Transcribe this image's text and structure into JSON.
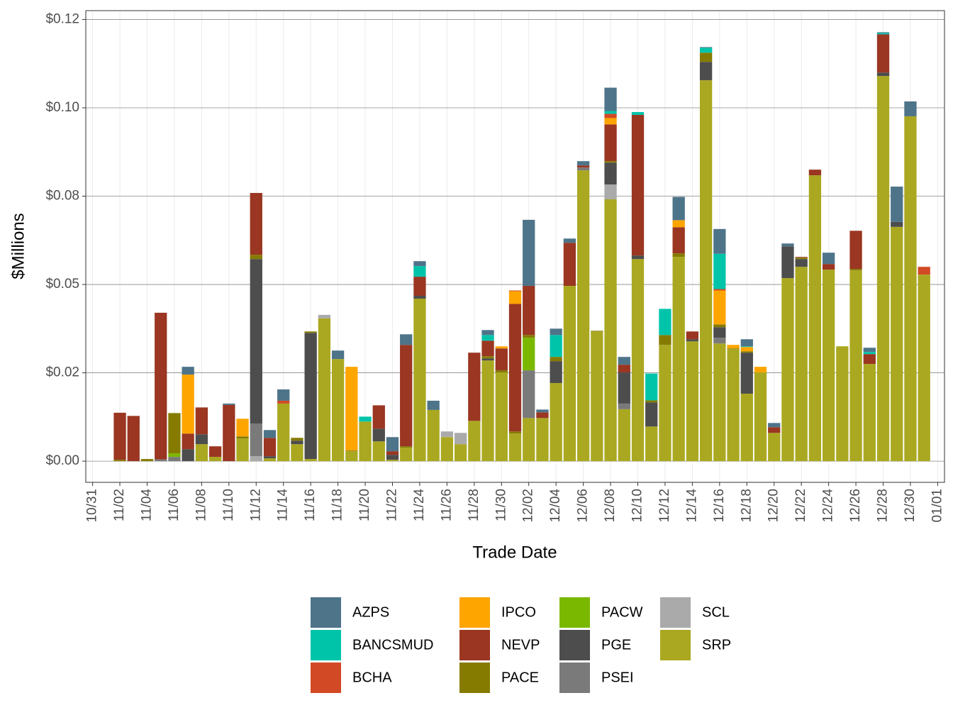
{
  "chart_data": {
    "type": "bar",
    "stacked": true,
    "x_label": "Trade Date",
    "y_label": "$Millions",
    "categories": [
      "11/02",
      "11/03",
      "11/04",
      "11/05",
      "11/06",
      "11/07",
      "11/08",
      "11/09",
      "11/10",
      "11/11",
      "11/12",
      "11/13",
      "11/14",
      "11/15",
      "11/16",
      "11/17",
      "11/18",
      "11/19",
      "11/20",
      "11/21",
      "11/22",
      "11/23",
      "11/24",
      "11/25",
      "11/26",
      "11/27",
      "11/28",
      "11/29",
      "11/30",
      "12/01",
      "12/02",
      "12/03",
      "12/04",
      "12/05",
      "12/06",
      "12/07",
      "12/08",
      "12/09",
      "12/10",
      "12/11",
      "12/12",
      "12/13",
      "12/14",
      "12/15",
      "12/16",
      "12/17",
      "12/18",
      "12/19",
      "12/20",
      "12/21",
      "12/22",
      "12/23",
      "12/24",
      "12/25",
      "12/26",
      "12/27",
      "12/28",
      "12/29",
      "12/30",
      "12/31"
    ],
    "series": [
      {
        "name": "AZPS",
        "color": "#4e7489",
        "values": [
          0,
          0,
          0,
          0,
          0,
          0.0022,
          0,
          0,
          0.0004,
          0,
          0,
          0.0022,
          0.0032,
          0,
          0,
          0,
          0.0024,
          0,
          0,
          0,
          0.004,
          0.003,
          0.0014,
          0.0026,
          0,
          0,
          0,
          0.0014,
          0,
          0,
          0.0187,
          0.0008,
          0.0018,
          0.0012,
          0.0012,
          0,
          0.0066,
          0.0022,
          0,
          0,
          0,
          0.0066,
          0,
          0.0002,
          0.007,
          0,
          0.002,
          0,
          0.0012,
          0.0008,
          0,
          0,
          0.0032,
          0,
          0,
          0.0012,
          0.0002,
          0.01,
          0.0042,
          0
        ]
      },
      {
        "name": "BANCSMUD",
        "color": "#00c4aa",
        "values": [
          0,
          0,
          0,
          0,
          0,
          0,
          0,
          0,
          0,
          0,
          0,
          0,
          0,
          0,
          0,
          0,
          0,
          0,
          0.0014,
          0,
          0,
          0,
          0.003,
          0,
          0,
          0,
          0,
          0.0016,
          0,
          0,
          0,
          0,
          0.0062,
          0,
          0,
          0,
          0.0008,
          0,
          0.0008,
          0.0076,
          0.0074,
          0,
          0,
          0.0014,
          0.01,
          0,
          0.0002,
          0,
          0,
          0,
          0,
          0,
          0,
          0,
          0,
          0.0006,
          0.0004,
          0,
          0,
          0
        ]
      },
      {
        "name": "BCHA",
        "color": "#d24a25",
        "values": [
          0,
          0,
          0,
          0,
          0,
          0,
          0,
          0,
          0,
          0,
          0,
          0,
          0.0008,
          0,
          0,
          0,
          0,
          0,
          0,
          0,
          0,
          0,
          0,
          0,
          0,
          0,
          0,
          0,
          0,
          0.0002,
          0,
          0,
          0,
          0,
          0,
          0,
          0.0012,
          0,
          0,
          0,
          0,
          0,
          0,
          0,
          0.0004,
          0,
          0,
          0,
          0,
          0,
          0,
          0,
          0,
          0,
          0,
          0,
          0,
          0,
          0,
          0.0022
        ]
      },
      {
        "name": "IPCO",
        "color": "#ffa500",
        "values": [
          0,
          0,
          0,
          0,
          0,
          0.0167,
          0,
          0,
          0,
          0.005,
          0,
          0,
          0,
          0,
          0,
          0,
          0,
          0.0237,
          0,
          0,
          0,
          0,
          0,
          0,
          0,
          0,
          0,
          0,
          0.0006,
          0.0036,
          0,
          0,
          0,
          0,
          0,
          0,
          0.0018,
          0,
          0,
          0,
          0,
          0.002,
          0,
          0,
          0.0096,
          0.001,
          0.0012,
          0.0016,
          0,
          0,
          0,
          0,
          0,
          0,
          0,
          0,
          0,
          0,
          0,
          0
        ]
      },
      {
        "name": "NEVP",
        "color": "#9a3621",
        "values": [
          0.0133,
          0.0128,
          0,
          0.0415,
          0,
          0.0044,
          0.0076,
          0.003,
          0.0159,
          0,
          0.0175,
          0.0052,
          0,
          0,
          0,
          0,
          0,
          0,
          0,
          0.0066,
          0.001,
          0.0287,
          0.0054,
          0,
          0,
          0,
          0.0193,
          0.0044,
          0.0062,
          0.0361,
          0.0139,
          0.0016,
          0,
          0.0122,
          0.0006,
          0,
          0.0104,
          0.0022,
          0.0398,
          0,
          0,
          0.0074,
          0.0022,
          0,
          0,
          0,
          0,
          0,
          0.0016,
          0,
          0.0002,
          0.0016,
          0.0016,
          0,
          0.0108,
          0.0028,
          0.0108,
          0,
          0,
          0
        ]
      },
      {
        "name": "PACE",
        "color": "#857b00",
        "values": [
          0.0004,
          0,
          0.0006,
          0,
          0.0114,
          0,
          0,
          0,
          0,
          0.0006,
          0.0012,
          0,
          0,
          0.0008,
          0.0004,
          0,
          0,
          0.0002,
          0,
          0,
          0,
          0.0004,
          0,
          0,
          0,
          0,
          0,
          0.0006,
          0.0006,
          0.0006,
          0.0008,
          0,
          0.0012,
          0,
          0,
          0.0002,
          0.0004,
          0,
          0,
          0.0006,
          0.0028,
          0.001,
          0,
          0.0026,
          0.0008,
          0.0002,
          0.0004,
          0,
          0,
          0,
          0.0004,
          0,
          0,
          0,
          0.0004,
          0,
          0,
          0,
          0,
          0
        ]
      },
      {
        "name": "PACW",
        "color": "#7ab800",
        "values": [
          0,
          0,
          0,
          0,
          0.001,
          0,
          0,
          0,
          0,
          0,
          0,
          0,
          0,
          0,
          0,
          0,
          0,
          0,
          0,
          0,
          0,
          0,
          0,
          0,
          0,
          0,
          0,
          0,
          0,
          0,
          0.0092,
          0,
          0,
          0,
          0,
          0,
          0,
          0,
          0,
          0,
          0,
          0,
          0,
          0,
          0,
          0,
          0,
          0,
          0,
          0,
          0,
          0,
          0,
          0,
          0,
          0,
          0,
          0,
          0,
          0
        ]
      },
      {
        "name": "PGE",
        "color": "#4d4d4d",
        "values": [
          0,
          0,
          0,
          0,
          0,
          0.0034,
          0.0028,
          0,
          0,
          0,
          0.0466,
          0.0006,
          0,
          0.001,
          0.0357,
          0,
          0,
          0,
          0,
          0.0036,
          0.0014,
          0,
          0.0008,
          0,
          0,
          0,
          0,
          0.0006,
          0,
          0,
          0,
          0,
          0.0062,
          0,
          0,
          0,
          0.0062,
          0.0088,
          0.001,
          0.0068,
          0,
          0,
          0.0006,
          0.0052,
          0.003,
          0,
          0.0116,
          0,
          0,
          0.009,
          0.0022,
          0,
          0,
          0,
          0,
          0,
          0.001,
          0.0014,
          0,
          0
        ]
      },
      {
        "name": "PSEI",
        "color": "#7a7a7a",
        "values": [
          0,
          0,
          0,
          0.0005,
          0.0012,
          0,
          0,
          0,
          0,
          0,
          0.0092,
          0,
          0,
          0,
          0,
          0,
          0,
          0,
          0,
          0,
          0,
          0,
          0,
          0,
          0,
          0,
          0,
          0,
          0,
          0,
          0.0135,
          0,
          0,
          0,
          0.0008,
          0,
          0,
          0.0016,
          0,
          0,
          0,
          0,
          0,
          0,
          0.0016,
          0,
          0,
          0,
          0,
          0,
          0,
          0,
          0,
          0,
          0,
          0,
          0,
          0,
          0,
          0
        ]
      },
      {
        "name": "SCL",
        "color": "#aaaaaa",
        "values": [
          0,
          0,
          0,
          0,
          0,
          0,
          0,
          0,
          0,
          0,
          0.0014,
          0,
          0,
          0,
          0,
          0.001,
          0,
          0,
          0,
          0,
          0,
          0,
          0,
          0,
          0.0016,
          0.0032,
          0,
          0,
          0,
          0,
          0,
          0,
          0,
          0,
          0,
          0,
          0.0042,
          0,
          0,
          0,
          0,
          0,
          0,
          0,
          0,
          0,
          0,
          0,
          0,
          0,
          0,
          0,
          0,
          0,
          0,
          0,
          0,
          0,
          0,
          0
        ]
      },
      {
        "name": "SRP",
        "color": "#aaa820",
        "values": [
          0,
          0,
          0,
          0,
          0,
          0,
          0.0048,
          0.0012,
          0,
          0.0064,
          0,
          0.0008,
          0.0163,
          0.0048,
          0.0006,
          0.0404,
          0.0289,
          0.0028,
          0.0112,
          0.0056,
          0.0004,
          0.0038,
          0.046,
          0.0145,
          0.0068,
          0.0048,
          0.0114,
          0.0285,
          0.0251,
          0.0078,
          0.0122,
          0.0122,
          0.0221,
          0.0496,
          0.0823,
          0.0367,
          0.0741,
          0.0147,
          0.0572,
          0.0098,
          0.0329,
          0.0578,
          0.0339,
          0.1078,
          0.0333,
          0.0317,
          0.0191,
          0.0251,
          0.008,
          0.0518,
          0.055,
          0.0809,
          0.0542,
          0.0325,
          0.054,
          0.0275,
          0.109,
          0.0663,
          0.0976,
          0.0528
        ]
      }
    ],
    "xlim": [
      "10/31",
      "01/01"
    ],
    "xticks": [
      "10/31",
      "11/02",
      "11/04",
      "11/06",
      "11/08",
      "11/10",
      "11/12",
      "11/14",
      "11/16",
      "11/18",
      "11/20",
      "11/22",
      "11/24",
      "11/26",
      "11/28",
      "11/30",
      "12/02",
      "12/04",
      "12/06",
      "12/08",
      "12/10",
      "12/12",
      "12/14",
      "12/16",
      "12/18",
      "12/20",
      "12/22",
      "12/24",
      "12/26",
      "12/28",
      "12/30",
      "01/01"
    ],
    "ylim": [
      -0.006,
      0.1275
    ],
    "yticks": [
      {
        "value": 0,
        "label": "$0.00"
      },
      {
        "value": 0.025,
        "label": "$0.02"
      },
      {
        "value": 0.05,
        "label": "$0.05"
      },
      {
        "value": 0.075,
        "label": "$0.08"
      },
      {
        "value": 0.1,
        "label": "$0.10"
      },
      {
        "value": 0.125,
        "label": "$0.12"
      }
    ],
    "grid": true,
    "legend": "bottom"
  }
}
